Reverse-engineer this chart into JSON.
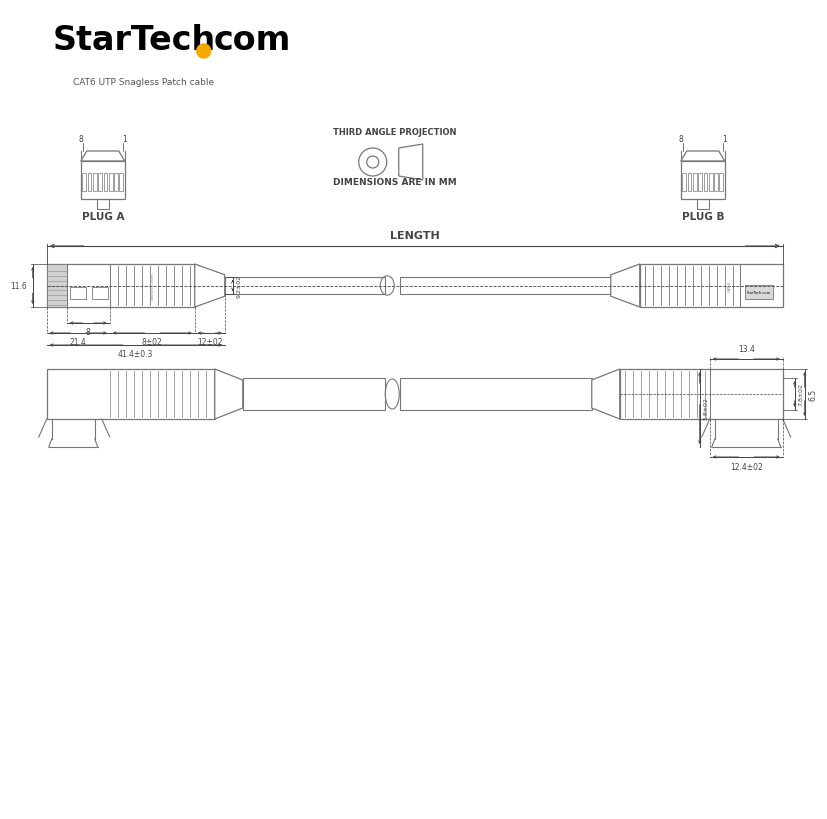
{
  "bg_color": "#ffffff",
  "line_color": "#777777",
  "dim_color": "#444444",
  "logo_dot_color": "#F5A800",
  "subtitle": "CAT6 UTP Snagless Patch cable",
  "plug_a_label": "PLUG A",
  "plug_b_label": "PLUG B",
  "projection_label": "THIRD ANGLE PROJECTION",
  "dimensions_label": "DIMENSIONS ARE IN MM",
  "length_label": "LENGTH",
  "dim_116": "11.6",
  "dim_92": "9.2±02",
  "dim_8": "8",
  "dim_214": "21.4",
  "dim_802": "8±02",
  "dim_1202": "12±02",
  "dim_4143": "41.4±0.3",
  "dim_134": "13.4",
  "dim_782": "7.8±02",
  "dim_65": "6.5",
  "dim_582": "5.8±02",
  "dim_1242": "12.4±02",
  "cattext": "CAT-6",
  "startext": "StarTech.com"
}
